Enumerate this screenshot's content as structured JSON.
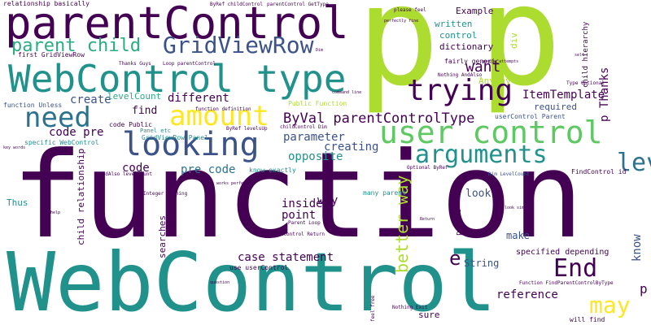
{
  "cloud": {
    "colors": {
      "dark_purple": "#440154",
      "navy": "#3b528b",
      "blue": "#2c728e",
      "teal": "#21918c",
      "green": "#28ae80",
      "light_green": "#5ec962",
      "lime": "#addc30",
      "yellow": "#fde725"
    },
    "words": {
      "function": "function",
      "p_big": "p",
      "p_big2": "p",
      "webcontrol_big": "WebControl",
      "webcontrol_type": "WebControl type",
      "parentcontrol": "parentControl",
      "gridviewrow": "GridViewRow",
      "parent_child": "parent child",
      "user_control": "user control",
      "arguments": "arguments",
      "looking": "looking",
      "amount": "amount",
      "need": "need",
      "trying": "trying",
      "levelsup": "levelsUp",
      "end": "End",
      "may": "may",
      "byval": "ByVal parentControlType",
      "better_way": "better way",
      "want": "want",
      "itemtemplate": "ItemTemplate",
      "create": "create",
      "levelcount": "levelCount",
      "different": "different",
      "code_pre": "code pre",
      "find": "find",
      "parameter": "parameter",
      "creating": "creating",
      "opposite": "opposite",
      "pre_code": "pre code",
      "code": "code",
      "inside": "inside",
      "point": "point",
      "case_statement": "case statement",
      "reference": "reference",
      "string": "String",
      "e": "e",
      "look": "look",
      "make": "make",
      "know": "know",
      "p_small": "p",
      "p_thanks": "p Thanks",
      "written": "written",
      "control": "control",
      "dictionary": "dictionary",
      "example": "Example",
      "anyway": "Anyway",
      "required": "required",
      "relationship_basically": "relationship basically",
      "first_gridviewrow": "first GridViewRow",
      "function_unless": "function Unless",
      "code_public": "code Public",
      "specific_webcontrol": "specific WebControl",
      "thus": "Thus",
      "child_relationship": "child relationship",
      "searches": "searches",
      "way": "way",
      "many_parent": "many parent",
      "use_usercontrol": "use userControl",
      "specified_depending": "specified depending",
      "function_findparent": "Function FindParentControlByType",
      "sure": "sure",
      "will_find": "will find",
      "nothing_exit": "Nothing Exit",
      "know_exactly": "know exactly",
      "findcontrol_id": "FindControl id",
      "dim_levelcount": "Dim LevelCount",
      "public_function": "Public Function",
      "usercontrol_parent": "userControl Parent",
      "gridviewrow_panel": "GridViewRow Panel",
      "panel_etc": "Panel etc",
      "fairly_generic": "fairly generic",
      "div": "div",
      "child_hierarchy": "child hierarchy",
      "parent": "parent",
      "thanks_guys": "Thanks Guys",
      "loop_parentcontrol": "Loop parentControl",
      "byref_childcontrol": "ByRef childControl",
      "parentcontrol_gettype": "parentControl GetType",
      "function_definition": "function definition",
      "andalso_levelcount": "AndAlso levelCount",
      "integer_nothing": "Integer Nothing",
      "byref_levelsup": "ByRef levelsUp",
      "childcontrol_dim": "childControl Dim",
      "type_optional": "Type Optional",
      "nothing_andalso": "Nothing AndAlso",
      "please_feel": "please feel",
      "perfectly_fine": "perfectly fine",
      "optional_byref": "Optional ByRef",
      "parent_loop": "Parent Loop",
      "findcontrol_return": "findControl Return",
      "feel_free": "feel free",
      "look_simple": "look simple",
      "key_words": "key words",
      "command_line": "command line",
      "question": "question",
      "works": "works perfectly",
      "help": "help",
      "google": "google attempts",
      "self": "self",
      "dim": "Dim",
      "return": "Return"
    }
  }
}
